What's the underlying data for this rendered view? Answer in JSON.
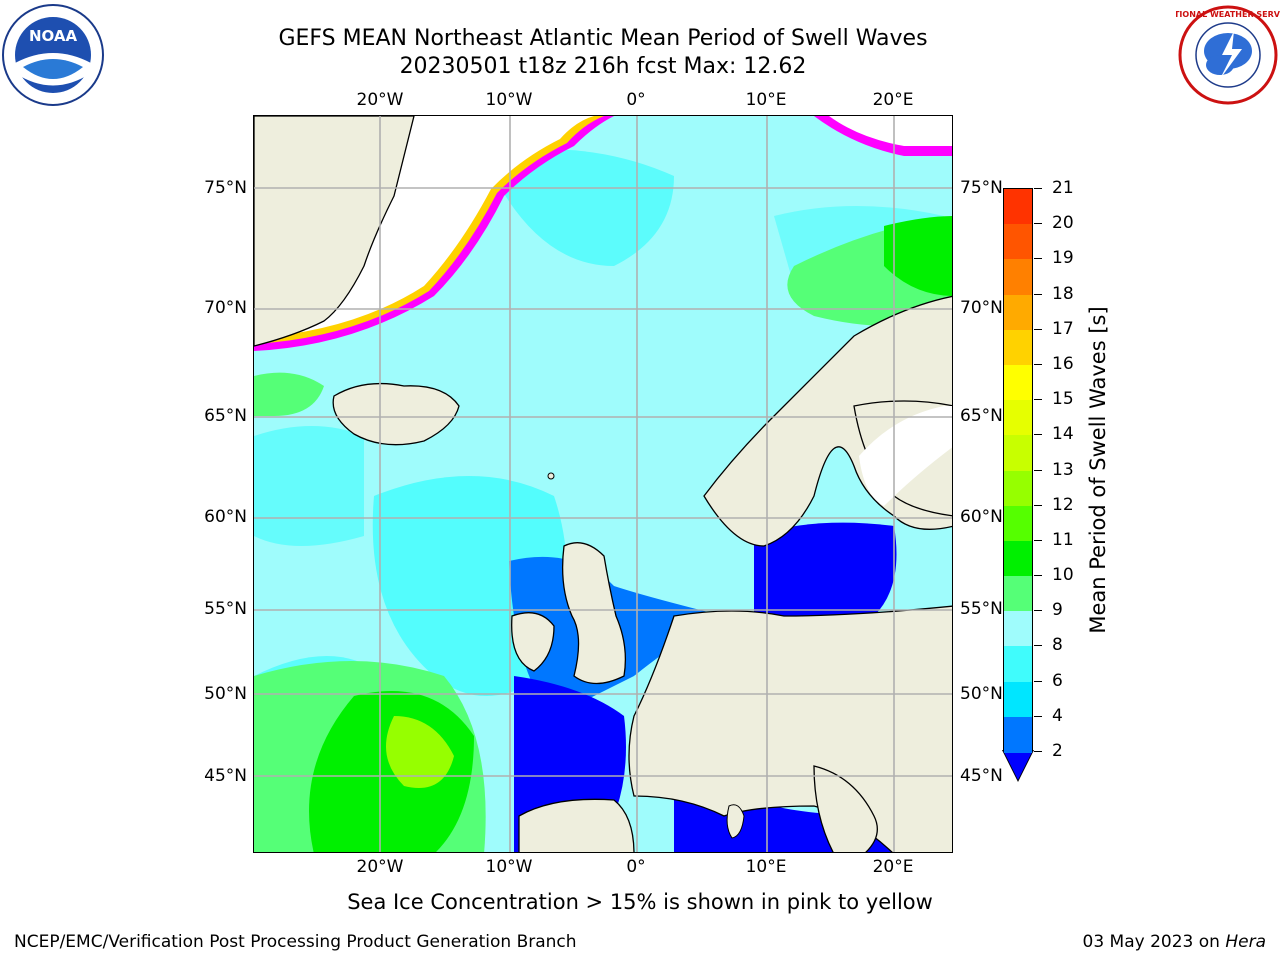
{
  "header": {
    "title_line1": "GEFS MEAN Northeast Atlantic Mean Period of Swell Waves",
    "title_line2": "20230501 t18z 216h fcst   Max: 12.62"
  },
  "logos": {
    "left_icon": "noaa-logo",
    "left_text": "NOAA",
    "right_icon": "nws-logo",
    "right_text": "NATIONAL WEATHER SERVICE"
  },
  "map": {
    "projection_extent": {
      "lon_min": -30,
      "lon_max": 25,
      "lat_min": 41,
      "lat_max": 78
    },
    "lon_labels": [
      "20°W",
      "10°W",
      "0°",
      "10°E",
      "20°E"
    ],
    "lat_labels": [
      "75°N",
      "70°N",
      "65°N",
      "60°N",
      "55°N",
      "50°N",
      "45°N"
    ],
    "colors": {
      "land": "#eeeedd",
      "ocean_default": "#9ffcfc",
      "ice": "#ff00ff"
    }
  },
  "colorbar": {
    "label": "Mean Period of Swell Waves [s]",
    "ticks": [
      "21",
      "20",
      "19",
      "18",
      "17",
      "16",
      "15",
      "14",
      "13",
      "12",
      "11",
      "10",
      "9",
      "8",
      "6",
      "4",
      "2"
    ],
    "colors": [
      "#ff0000",
      "#ff3300",
      "#ff5500",
      "#ff8000",
      "#ffaa00",
      "#ffd200",
      "#ffff00",
      "#e6ff00",
      "#c8ff00",
      "#96ff00",
      "#55ff00",
      "#00f000",
      "#55ff77",
      "#9ffcfc",
      "#40fcfc",
      "#00e6ff",
      "#0077ff",
      "#0000ff"
    ]
  },
  "notes": {
    "ice": "Sea Ice Concentration > 15% is shown in pink to yellow",
    "footer_left": "NCEP/EMC/Verification Post Processing Product Generation Branch",
    "footer_right_prefix": "03 May 2023 on ",
    "footer_right_host": "Hera"
  }
}
